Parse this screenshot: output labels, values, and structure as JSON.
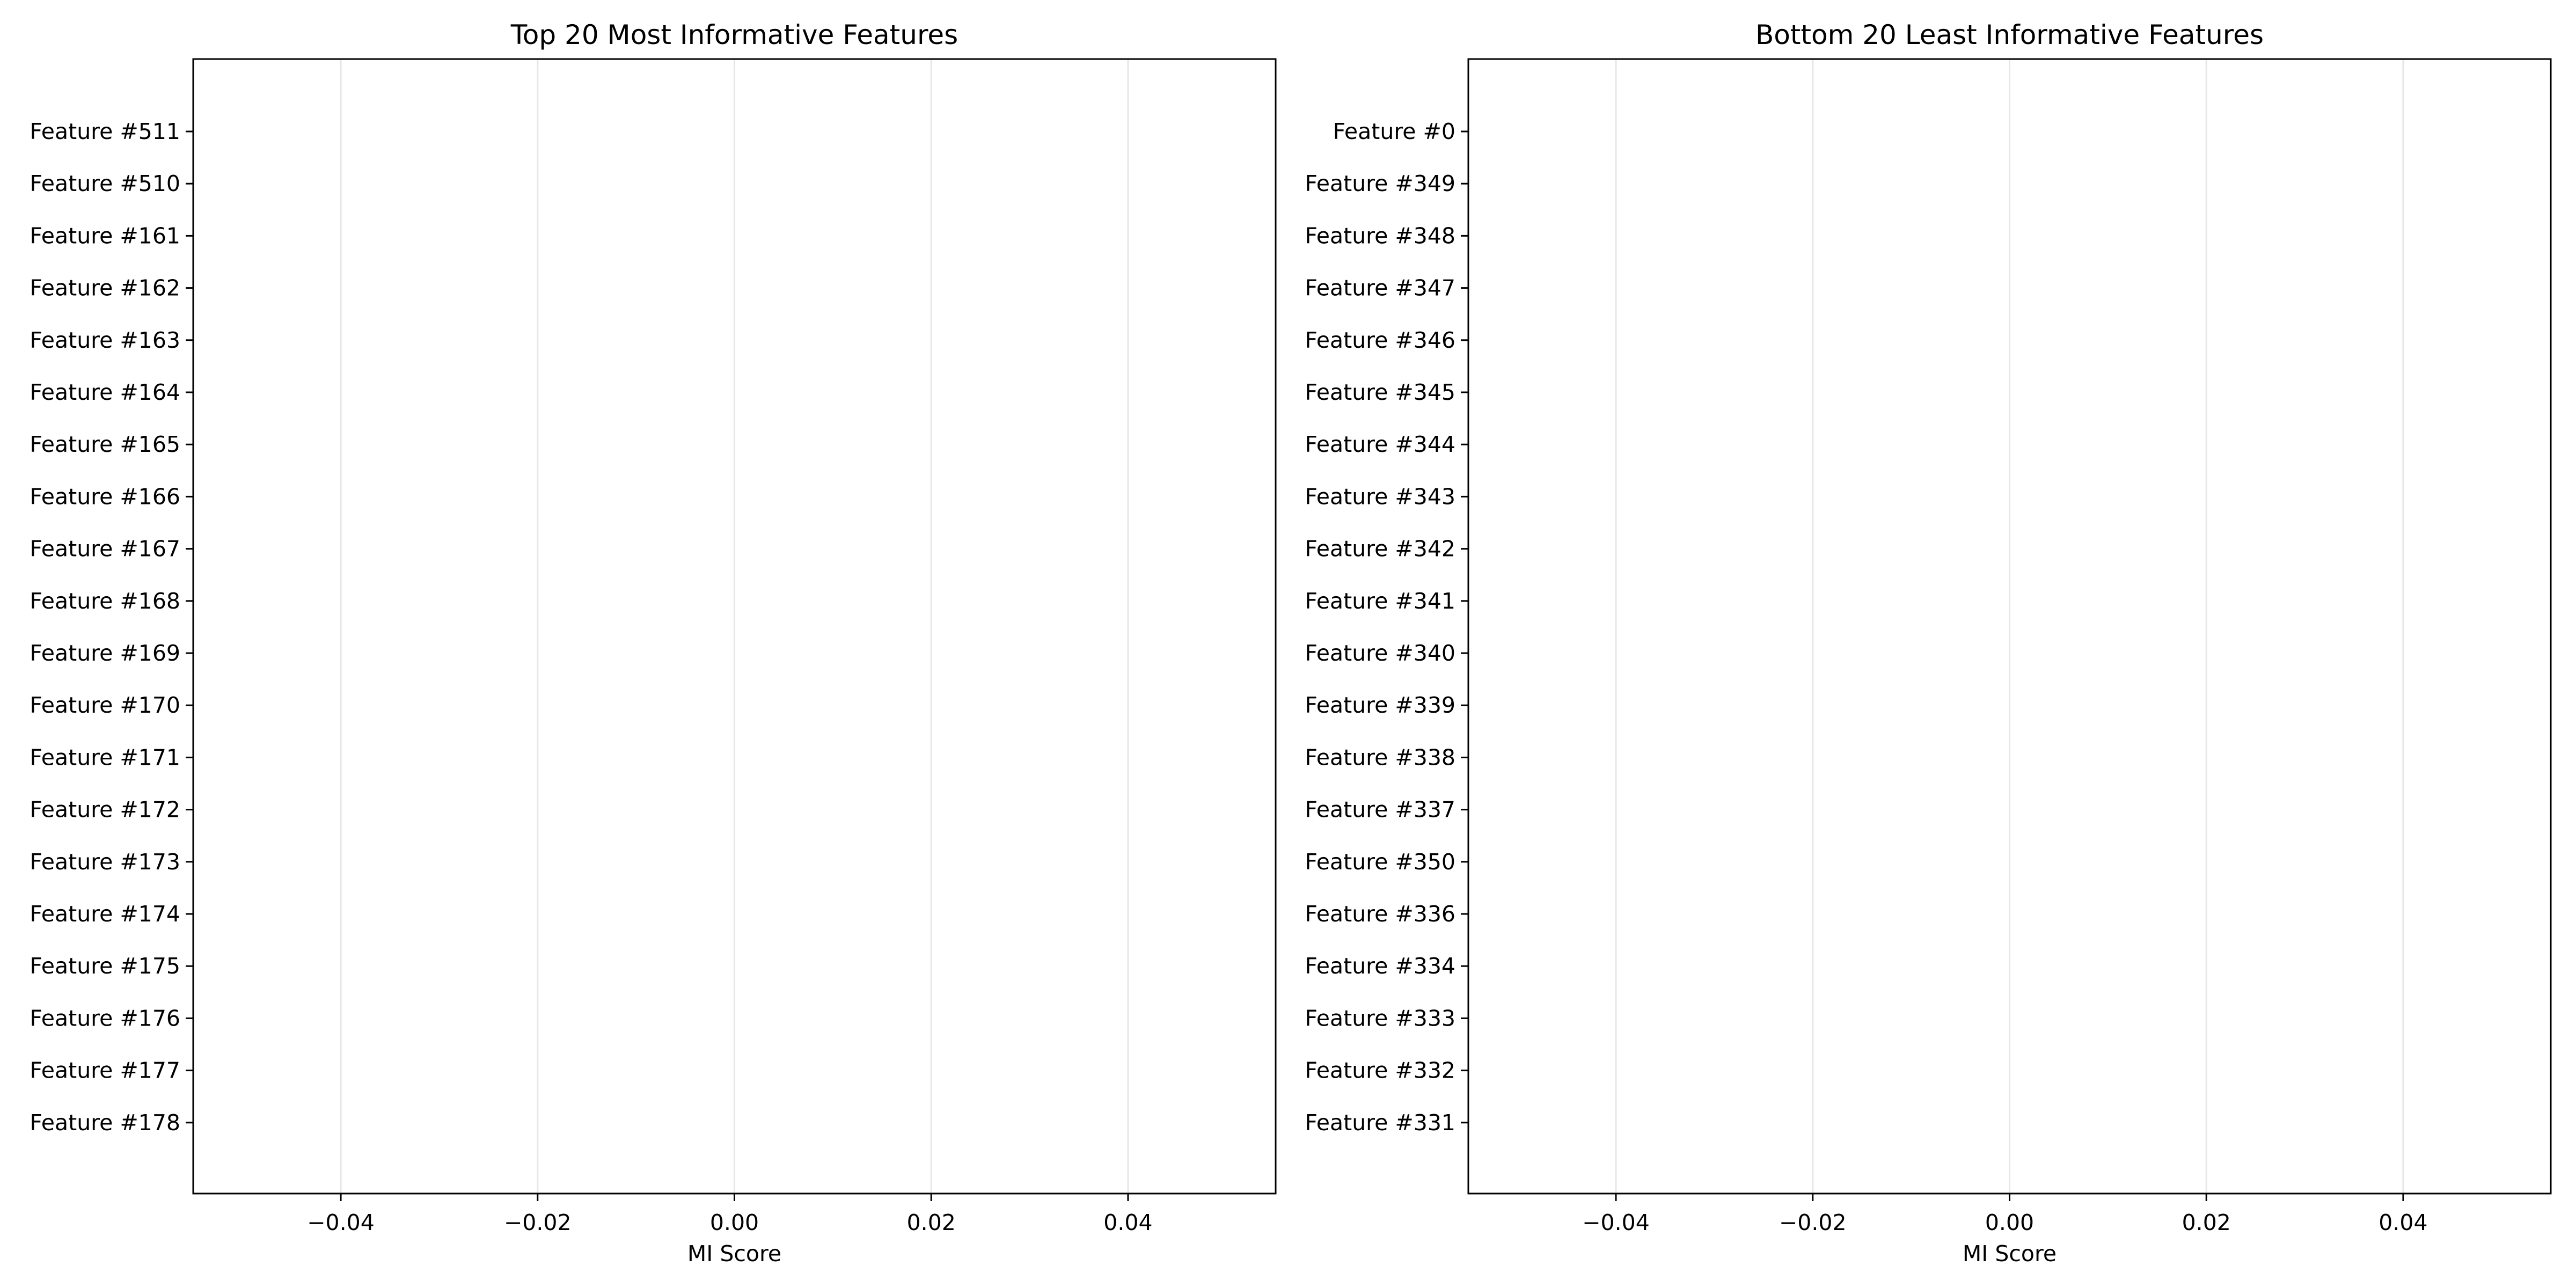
{
  "chart_data": [
    {
      "type": "bar",
      "orientation": "horizontal",
      "title": "Top 20 Most Informative Features",
      "xlabel": "MI Score",
      "ylabel": "",
      "xlim": [
        -0.055,
        0.055
      ],
      "xticks": [
        -0.04,
        -0.02,
        0.0,
        0.02,
        0.04
      ],
      "xtick_labels": [
        "−0.04",
        "−0.02",
        "0.00",
        "0.02",
        "0.04"
      ],
      "grid": "x",
      "categories": [
        "Feature #511",
        "Feature #510",
        "Feature #161",
        "Feature #162",
        "Feature #163",
        "Feature #164",
        "Feature #165",
        "Feature #166",
        "Feature #167",
        "Feature #168",
        "Feature #169",
        "Feature #170",
        "Feature #171",
        "Feature #172",
        "Feature #173",
        "Feature #174",
        "Feature #175",
        "Feature #176",
        "Feature #177",
        "Feature #178"
      ],
      "values": [
        0,
        0,
        0,
        0,
        0,
        0,
        0,
        0,
        0,
        0,
        0,
        0,
        0,
        0,
        0,
        0,
        0,
        0,
        0,
        0
      ]
    },
    {
      "type": "bar",
      "orientation": "horizontal",
      "title": "Bottom 20 Least Informative Features",
      "xlabel": "MI Score",
      "ylabel": "",
      "xlim": [
        -0.055,
        0.055
      ],
      "xticks": [
        -0.04,
        -0.02,
        0.0,
        0.02,
        0.04
      ],
      "xtick_labels": [
        "−0.04",
        "−0.02",
        "0.00",
        "0.02",
        "0.04"
      ],
      "grid": "x",
      "categories": [
        "Feature #0",
        "Feature #349",
        "Feature #348",
        "Feature #347",
        "Feature #346",
        "Feature #345",
        "Feature #344",
        "Feature #343",
        "Feature #342",
        "Feature #341",
        "Feature #340",
        "Feature #339",
        "Feature #338",
        "Feature #337",
        "Feature #350",
        "Feature #336",
        "Feature #334",
        "Feature #333",
        "Feature #332",
        "Feature #331"
      ],
      "values": [
        0,
        0,
        0,
        0,
        0,
        0,
        0,
        0,
        0,
        0,
        0,
        0,
        0,
        0,
        0,
        0,
        0,
        0,
        0,
        0
      ]
    }
  ],
  "colors": {
    "grid": "#e6e6e6",
    "axes": "#000000",
    "bar": "#1f77b4",
    "background": "#ffffff"
  }
}
